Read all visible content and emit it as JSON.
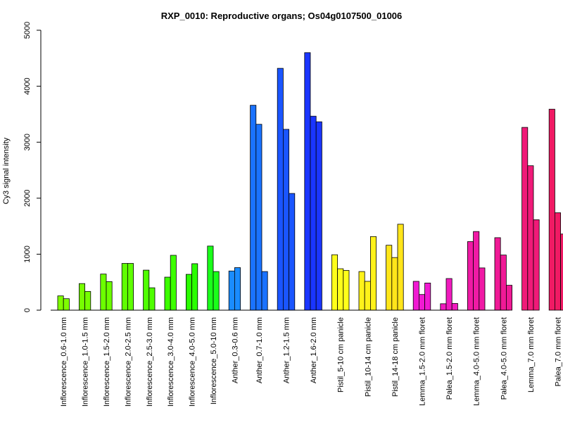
{
  "chart_data": {
    "type": "bar",
    "title": "RXP_0010: Reproductive organs; Os04g0107500_01006",
    "ylabel": "Cy3 signal intensity",
    "xlabel": "",
    "ylim": [
      0,
      5000
    ],
    "yticks": [
      0,
      1000,
      2000,
      3000,
      4000,
      5000
    ],
    "grid": false,
    "groups": [
      {
        "label": "Inflorescence_0.6-1.0 mm",
        "color": "#7FFF00",
        "values": [
          255,
          205
        ]
      },
      {
        "label": "Inflorescence_1.0-1.5 mm",
        "color": "#76FF00",
        "values": [
          475,
          335
        ]
      },
      {
        "label": "Inflorescence_1.5-2.0 mm",
        "color": "#6CFF00",
        "values": [
          645,
          510
        ]
      },
      {
        "label": "Inflorescence_2.0-2.5 mm",
        "color": "#5FFF00",
        "values": [
          835,
          835
        ]
      },
      {
        "label": "Inflorescence_2.5-3.0 mm",
        "color": "#4FFF00",
        "values": [
          715,
          400
        ]
      },
      {
        "label": "Inflorescence_3.0-4.0 mm",
        "color": "#3CFF00",
        "values": [
          590,
          980
        ]
      },
      {
        "label": "Inflorescence_4.0-5.0 mm",
        "color": "#2AFF00",
        "values": [
          640,
          830
        ]
      },
      {
        "label": "Inflorescence_5.0-10 mm",
        "color": "#1AFF1A",
        "values": [
          1145,
          690
        ]
      },
      {
        "label": "Anther_0.3-0.6 mm",
        "color": "#1A8CFF",
        "values": [
          700,
          760
        ]
      },
      {
        "label": "Anther_0.7-1.0 mm",
        "color": "#1A72FF",
        "values": [
          3660,
          3320,
          690
        ]
      },
      {
        "label": "Anther_1.2-1.5 mm",
        "color": "#1A55FF",
        "values": [
          4320,
          3230,
          2085
        ]
      },
      {
        "label": "Anther_1.6-2.0 mm",
        "color": "#1A35FF",
        "values": [
          4600,
          3465,
          3365
        ]
      },
      {
        "label": "Pistil_5-10 cm panicle",
        "color": "#FFFF1A",
        "values": [
          990,
          740,
          710
        ]
      },
      {
        "label": "Pistil_10-14 cm panicle",
        "color": "#FFF21A",
        "values": [
          690,
          515,
          1315
        ]
      },
      {
        "label": "Pistil_14-18 cm panicle",
        "color": "#FFE51A",
        "values": [
          1160,
          940,
          1535
        ]
      },
      {
        "label": "Lemma_1.5-2.0 mm floret",
        "color": "#F01AD2",
        "values": [
          515,
          280,
          485
        ]
      },
      {
        "label": "Palea_1.5-2.0 mm floret",
        "color": "#F01ABE",
        "values": [
          115,
          565,
          120
        ]
      },
      {
        "label": "Lemma_4.0-5.0 mm floret",
        "color": "#F01AA5",
        "values": [
          1225,
          1405,
          755
        ]
      },
      {
        "label": "Palea_4.0-5.0 mm floret",
        "color": "#F01A96",
        "values": [
          1295,
          985,
          445
        ]
      },
      {
        "label": "Lemma_7.0 mm floret",
        "color": "#F01A78",
        "values": [
          3265,
          2580,
          1615
        ]
      },
      {
        "label": "Palea_7.0 mm floret",
        "color": "#F01A64",
        "values": [
          3590,
          1740,
          1360
        ]
      }
    ]
  }
}
